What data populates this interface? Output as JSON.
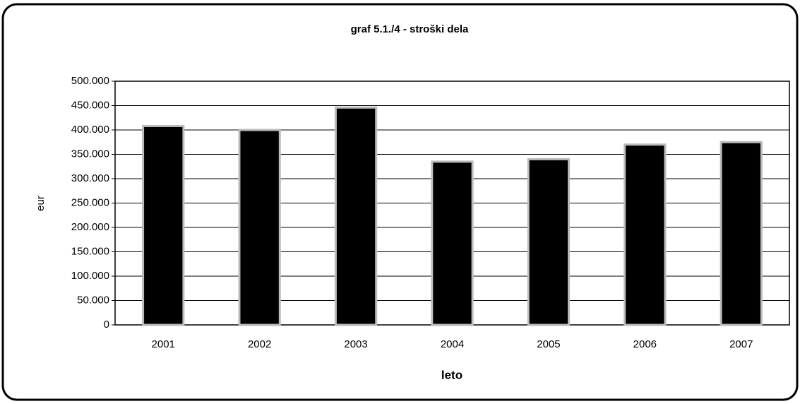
{
  "chart_data": {
    "type": "bar",
    "title": "graf 5.1./4 - stroški dela",
    "x_label": "leto",
    "y_label": "eur",
    "categories": [
      "2001",
      "2002",
      "2003",
      "2004",
      "2005",
      "2006",
      "2007"
    ],
    "values": [
      408000,
      400000,
      446000,
      335000,
      340000,
      370000,
      375000
    ],
    "color": "#000000",
    "ylim": [
      0,
      500000
    ],
    "yticks": [
      0,
      {
        "value": 50000,
        "label": "50.000"
      },
      {
        "value": 100000,
        "label": "100.000"
      },
      {
        "value": 150000,
        "label": "150.000"
      },
      {
        "value": 200000,
        "label": "200.000"
      },
      {
        "value": 250000,
        "label": "250.000"
      },
      {
        "value": 300000,
        "label": "300.000"
      },
      {
        "value": 350000,
        "label": "350.000"
      },
      {
        "value": 400000,
        "label": "400.000"
      },
      {
        "value": 450000,
        "label": "450.000"
      },
      {
        "value": 500000,
        "label": "500.000"
      }
    ],
    "grid": true
  }
}
